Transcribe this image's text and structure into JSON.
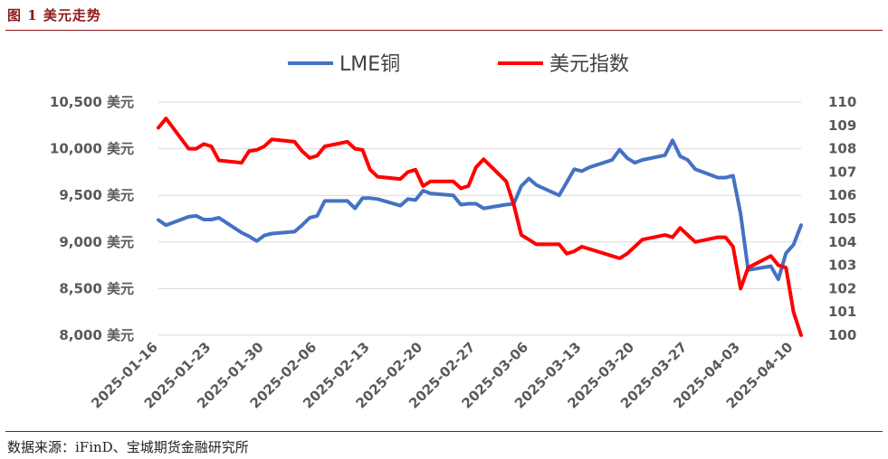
{
  "figure": {
    "title": "图 1  美元走势",
    "source": "数据来源：iFinD、宝城期货金融研究所"
  },
  "chart_data": {
    "type": "line",
    "title": "",
    "legend_position": "top-center",
    "grid": "horizontal",
    "y_left": {
      "min": 8000,
      "max": 10500,
      "ticks": [
        8000,
        8500,
        9000,
        9500,
        10000,
        10500
      ],
      "tick_labels": [
        "8,000 美元",
        "8,500 美元",
        "9,000 美元",
        "9,500 美元",
        "10,000 美元",
        "10,500 美元"
      ]
    },
    "y_right": {
      "min": 100,
      "max": 110,
      "ticks": [
        100,
        101,
        102,
        103,
        104,
        105,
        106,
        107,
        108,
        109,
        110
      ],
      "tick_labels": [
        "100",
        "101",
        "102",
        "103",
        "104",
        "105",
        "106",
        "107",
        "108",
        "109",
        "110"
      ]
    },
    "x_tick_labels": [
      "2025-01-16",
      "2025-01-23",
      "2025-01-30",
      "2025-02-06",
      "2025-02-13",
      "2025-02-20",
      "2025-02-27",
      "2025-03-06",
      "2025-03-13",
      "2025-03-20",
      "2025-03-27",
      "2025-04-03",
      "2025-04-10"
    ],
    "series": [
      {
        "name": "LME铜",
        "axis": "left",
        "color": "#4472c4",
        "points": [
          [
            "2025-01-16",
            9235
          ],
          [
            "2025-01-17",
            9180
          ],
          [
            "2025-01-20",
            9270
          ],
          [
            "2025-01-21",
            9280
          ],
          [
            "2025-01-22",
            9240
          ],
          [
            "2025-01-23",
            9240
          ],
          [
            "2025-01-24",
            9260
          ],
          [
            "2025-01-27",
            9100
          ],
          [
            "2025-01-28",
            9060
          ],
          [
            "2025-01-29",
            9010
          ],
          [
            "2025-01-30",
            9070
          ],
          [
            "2025-01-31",
            9090
          ],
          [
            "2025-02-03",
            9110
          ],
          [
            "2025-02-04",
            9180
          ],
          [
            "2025-02-05",
            9260
          ],
          [
            "2025-02-06",
            9280
          ],
          [
            "2025-02-07",
            9440
          ],
          [
            "2025-02-10",
            9440
          ],
          [
            "2025-02-11",
            9360
          ],
          [
            "2025-02-12",
            9470
          ],
          [
            "2025-02-13",
            9470
          ],
          [
            "2025-02-14",
            9460
          ],
          [
            "2025-02-17",
            9390
          ],
          [
            "2025-02-18",
            9460
          ],
          [
            "2025-02-19",
            9450
          ],
          [
            "2025-02-20",
            9550
          ],
          [
            "2025-02-21",
            9520
          ],
          [
            "2025-02-24",
            9500
          ],
          [
            "2025-02-25",
            9400
          ],
          [
            "2025-02-26",
            9410
          ],
          [
            "2025-02-27",
            9410
          ],
          [
            "2025-02-28",
            9360
          ],
          [
            "2025-03-03",
            9400
          ],
          [
            "2025-03-04",
            9410
          ],
          [
            "2025-03-05",
            9600
          ],
          [
            "2025-03-06",
            9680
          ],
          [
            "2025-03-07",
            9610
          ],
          [
            "2025-03-10",
            9500
          ],
          [
            "2025-03-11",
            9640
          ],
          [
            "2025-03-12",
            9780
          ],
          [
            "2025-03-13",
            9760
          ],
          [
            "2025-03-14",
            9800
          ],
          [
            "2025-03-17",
            9880
          ],
          [
            "2025-03-18",
            9990
          ],
          [
            "2025-03-19",
            9900
          ],
          [
            "2025-03-20",
            9850
          ],
          [
            "2025-03-21",
            9880
          ],
          [
            "2025-03-24",
            9930
          ],
          [
            "2025-03-25",
            10090
          ],
          [
            "2025-03-26",
            9920
          ],
          [
            "2025-03-27",
            9880
          ],
          [
            "2025-03-28",
            9780
          ],
          [
            "2025-03-31",
            9690
          ],
          [
            "2025-04-01",
            9690
          ],
          [
            "2025-04-02",
            9710
          ],
          [
            "2025-04-03",
            9300
          ],
          [
            "2025-04-04",
            8700
          ],
          [
            "2025-04-07",
            8740
          ],
          [
            "2025-04-08",
            8600
          ],
          [
            "2025-04-09",
            8880
          ],
          [
            "2025-04-10",
            8970
          ],
          [
            "2025-04-11",
            9180
          ]
        ]
      },
      {
        "name": "美元指数",
        "axis": "right",
        "color": "#ff0000",
        "points": [
          [
            "2025-01-16",
            108.9
          ],
          [
            "2025-01-17",
            109.3
          ],
          [
            "2025-01-20",
            108.0
          ],
          [
            "2025-01-21",
            108.0
          ],
          [
            "2025-01-22",
            108.2
          ],
          [
            "2025-01-23",
            108.1
          ],
          [
            "2025-01-24",
            107.5
          ],
          [
            "2025-01-27",
            107.4
          ],
          [
            "2025-01-28",
            107.9
          ],
          [
            "2025-01-29",
            107.95
          ],
          [
            "2025-01-30",
            108.1
          ],
          [
            "2025-01-31",
            108.4
          ],
          [
            "2025-02-03",
            108.3
          ],
          [
            "2025-02-04",
            107.9
          ],
          [
            "2025-02-05",
            107.6
          ],
          [
            "2025-02-06",
            107.7
          ],
          [
            "2025-02-07",
            108.1
          ],
          [
            "2025-02-10",
            108.3
          ],
          [
            "2025-02-11",
            108.0
          ],
          [
            "2025-02-12",
            107.95
          ],
          [
            "2025-02-13",
            107.1
          ],
          [
            "2025-02-14",
            106.8
          ],
          [
            "2025-02-17",
            106.7
          ],
          [
            "2025-02-18",
            107.0
          ],
          [
            "2025-02-19",
            107.1
          ],
          [
            "2025-02-20",
            106.4
          ],
          [
            "2025-02-21",
            106.6
          ],
          [
            "2025-02-24",
            106.6
          ],
          [
            "2025-02-25",
            106.3
          ],
          [
            "2025-02-26",
            106.4
          ],
          [
            "2025-02-27",
            107.2
          ],
          [
            "2025-02-28",
            107.55
          ],
          [
            "2025-03-03",
            106.6
          ],
          [
            "2025-03-04",
            105.6
          ],
          [
            "2025-03-05",
            104.3
          ],
          [
            "2025-03-06",
            104.1
          ],
          [
            "2025-03-07",
            103.9
          ],
          [
            "2025-03-10",
            103.9
          ],
          [
            "2025-03-11",
            103.5
          ],
          [
            "2025-03-12",
            103.6
          ],
          [
            "2025-03-13",
            103.8
          ],
          [
            "2025-03-14",
            103.7
          ],
          [
            "2025-03-17",
            103.4
          ],
          [
            "2025-03-18",
            103.3
          ],
          [
            "2025-03-19",
            103.5
          ],
          [
            "2025-03-20",
            103.8
          ],
          [
            "2025-03-21",
            104.1
          ],
          [
            "2025-03-24",
            104.3
          ],
          [
            "2025-03-25",
            104.2
          ],
          [
            "2025-03-26",
            104.6
          ],
          [
            "2025-03-27",
            104.3
          ],
          [
            "2025-03-28",
            104.0
          ],
          [
            "2025-03-31",
            104.2
          ],
          [
            "2025-04-01",
            104.2
          ],
          [
            "2025-04-02",
            103.8
          ],
          [
            "2025-04-03",
            102.0
          ],
          [
            "2025-04-04",
            102.9
          ],
          [
            "2025-04-07",
            103.4
          ],
          [
            "2025-04-08",
            103.0
          ],
          [
            "2025-04-09",
            102.9
          ],
          [
            "2025-04-10",
            101.0
          ],
          [
            "2025-04-11",
            100.0
          ]
        ]
      }
    ]
  }
}
